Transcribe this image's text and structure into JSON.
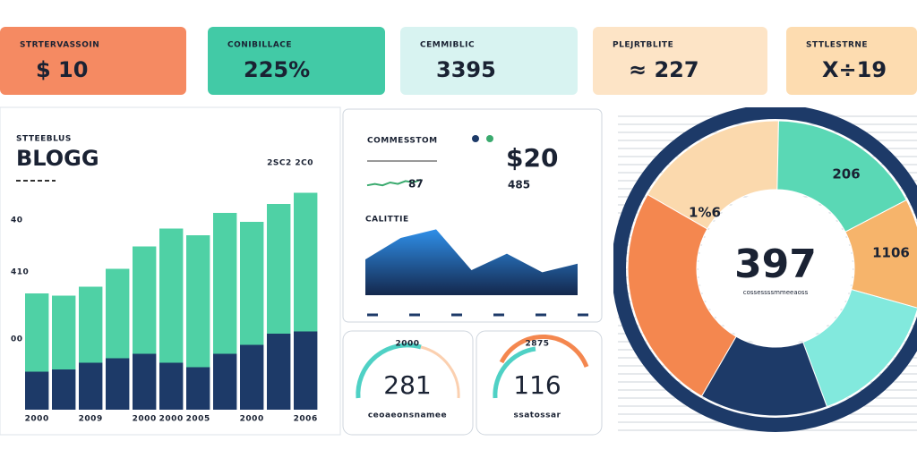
{
  "kpi_cards": [
    {
      "label": "STRTERVASSOIN",
      "value": "$ 10",
      "color": "#f58a62"
    },
    {
      "label": "CONIBILLACE",
      "value": "225%",
      "color": "#42caa6"
    },
    {
      "label": "CEMMIBLIC",
      "value": "3395",
      "color": "#d8f3f1"
    },
    {
      "label": "PLEJRTBLITE",
      "value": "≈ 227",
      "color": "#fde4c6"
    },
    {
      "label": "STTLESTRNE",
      "value": "X÷19",
      "color": "#fddcb0"
    }
  ],
  "gauges": [
    {
      "label": "2000",
      "value": "281",
      "caption": "ceoaeonsnamee"
    },
    {
      "label": "2875",
      "value": "116",
      "caption": "ssatossar"
    }
  ],
  "chart_data": [
    {
      "type": "bar",
      "stacked": true,
      "subtitle": "STTEEBLUS",
      "title": "BLOGG",
      "note": "2SC2 2C0",
      "y_labels": [
        "40",
        "410",
        "00"
      ],
      "categories": [
        "2000",
        null,
        "2009",
        null,
        "2000",
        "2000",
        "2005",
        null,
        "2000",
        null,
        "2006"
      ],
      "ylim": [
        0,
        100
      ],
      "series": [
        {
          "color": "#1d3a68",
          "values": [
            17,
            18,
            21,
            23,
            25,
            21,
            19,
            25,
            29,
            34,
            35
          ]
        },
        {
          "color": "#4fd1a5",
          "values": [
            35,
            33,
            34,
            40,
            48,
            60,
            59,
            63,
            55,
            58,
            62
          ]
        }
      ]
    },
    {
      "type": "line",
      "title": "COMMESSTOM",
      "value_text": "87",
      "headline": "$20",
      "sub": "485",
      "values": [
        3,
        4,
        3,
        5,
        4,
        6,
        5,
        7
      ],
      "ylim": [
        0,
        10
      ],
      "color": "#3aaa6e"
    },
    {
      "type": "area",
      "title": "CALITTIE",
      "values": [
        50,
        80,
        92,
        35,
        58,
        32,
        44
      ],
      "ylim": [
        0,
        100
      ],
      "color": "#2f7fd8"
    },
    {
      "type": "pie",
      "center_value": "397",
      "center_caption": "cossessssmmeeaoss",
      "categories": [
        "1%6",
        "206",
        "1106",
        null,
        null,
        null
      ],
      "values": [
        17,
        17,
        12,
        15,
        14,
        25
      ],
      "colors": [
        "#fbd9ad",
        "#5ad8b5",
        "#f6b46b",
        "#82e9dd",
        "#1d3a68",
        "#f4874f"
      ]
    }
  ]
}
